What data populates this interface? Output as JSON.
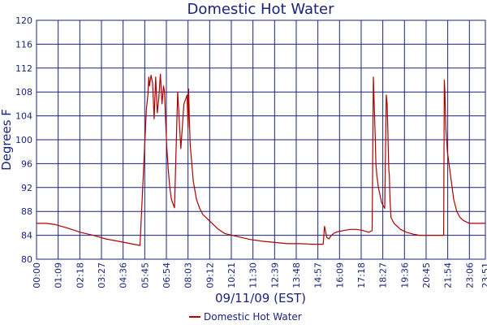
{
  "chart_data": {
    "type": "line",
    "title": "Domestic Hot Water",
    "xlabel": "09/11/09 (EST)",
    "ylabel": "Degrees F",
    "ylim": [
      80,
      120
    ],
    "xlim": [
      0,
      1431
    ],
    "yticks": [
      80,
      84,
      88,
      92,
      96,
      100,
      104,
      108,
      112,
      116,
      120
    ],
    "xtick_values": [
      0,
      69,
      138,
      207,
      276,
      345,
      414,
      483,
      552,
      621,
      690,
      759,
      828,
      897,
      966,
      1035,
      1104,
      1173,
      1242,
      1311,
      1380,
      1431
    ],
    "xtick_labels": [
      "00:00",
      "01:09",
      "02:18",
      "03:27",
      "04:36",
      "05:45",
      "06:54",
      "08:03",
      "09:12",
      "10:21",
      "11:30",
      "12:39",
      "13:48",
      "14:57",
      "16:09",
      "17:18",
      "18:27",
      "19:36",
      "20:45",
      "21:54",
      "23:06",
      "23:51"
    ],
    "grid": true,
    "legend_position": "bottom-center",
    "colors": {
      "series": "#b00000",
      "grid": "#1a237e",
      "text": "#1a237e",
      "background": "#ffffff"
    },
    "series": [
      {
        "name": "Domestic Hot Water",
        "x": [
          0,
          30,
          60,
          100,
          140,
          180,
          220,
          260,
          300,
          330,
          350,
          355,
          358,
          360,
          365,
          370,
          375,
          380,
          385,
          390,
          395,
          400,
          405,
          408,
          411,
          415,
          420,
          425,
          430,
          440,
          450,
          460,
          470,
          480,
          483,
          485,
          487,
          490,
          495,
          500,
          510,
          520,
          530,
          540,
          560,
          580,
          600,
          640,
          680,
          720,
          760,
          800,
          840,
          880,
          914,
          918,
          922,
          926,
          932,
          940,
          950,
          960,
          980,
          1000,
          1020,
          1040,
          1060,
          1070,
          1074,
          1080,
          1082,
          1085,
          1090,
          1100,
          1110,
          1115,
          1118,
          1123,
          1125,
          1127,
          1130,
          1140,
          1150,
          1160,
          1180,
          1200,
          1220,
          1240,
          1260,
          1280,
          1298,
          1300,
          1302,
          1305,
          1310,
          1320,
          1330,
          1340,
          1350,
          1360,
          1380,
          1400,
          1420,
          1431
        ],
        "values": [
          86,
          86,
          85.8,
          85.2,
          84.5,
          84,
          83.4,
          83,
          82.6,
          82.3,
          105,
          107.5,
          110.5,
          109,
          110.8,
          109.5,
          103.5,
          110.5,
          104.5,
          107,
          111,
          106,
          109,
          108,
          104,
          99,
          95,
          92,
          90,
          88.6,
          108,
          98.5,
          106,
          107.5,
          102,
          108.5,
          104,
          99,
          96,
          93,
          90,
          88.5,
          87.5,
          87,
          86,
          85,
          84.3,
          83.8,
          83.3,
          83,
          82.8,
          82.6,
          82.6,
          82.5,
          82.5,
          85.5,
          84.5,
          83.6,
          83.4,
          84,
          84.4,
          84.6,
          84.8,
          85,
          85,
          84.8,
          84.5,
          84.8,
          110.5,
          100,
          96,
          94,
          92,
          89.5,
          88.5,
          107.5,
          106,
          95,
          94,
          90,
          87,
          86,
          85.5,
          85,
          84.5,
          84.2,
          84,
          84,
          84,
          84,
          84,
          110,
          108,
          102,
          98,
          94,
          90,
          88,
          87,
          86.5,
          86,
          86,
          86,
          86
        ]
      }
    ]
  },
  "legend": {
    "label": "Domestic Hot Water"
  }
}
